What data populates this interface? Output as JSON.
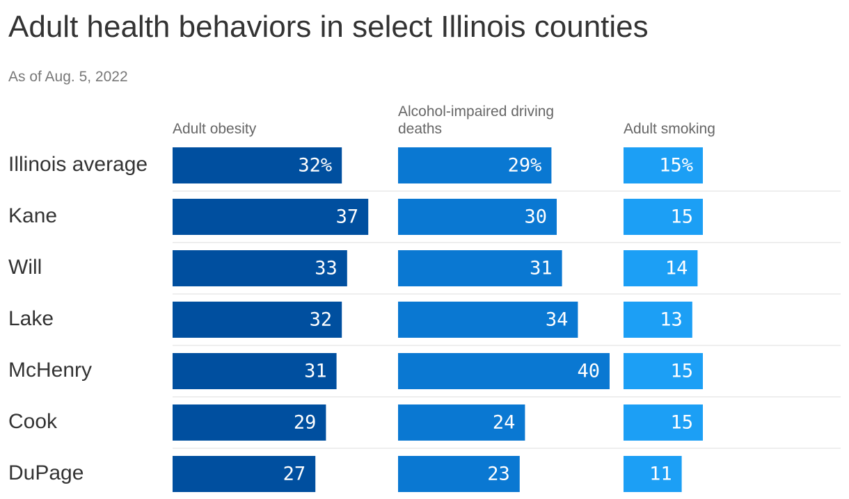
{
  "chart_data": {
    "type": "bar",
    "orientation": "horizontal",
    "title": "Adult health behaviors in select Illinois counties",
    "subtitle": "As of Aug. 5, 2022",
    "categories": [
      "Illinois average",
      "Kane",
      "Will",
      "Lake",
      "McHenry",
      "Cook",
      "DuPage"
    ],
    "series": [
      {
        "name": "Adult obesity",
        "color": "#004f9f",
        "values": [
          32,
          37,
          33,
          32,
          31,
          29,
          27
        ],
        "value_labels": [
          "32%",
          "37",
          "33",
          "32",
          "31",
          "29",
          "27"
        ]
      },
      {
        "name": "Alcohol-impaired driving deaths",
        "color": "#0a78d2",
        "values": [
          29,
          30,
          31,
          34,
          40,
          24,
          23
        ],
        "value_labels": [
          "29%",
          "30",
          "31",
          "34",
          "40",
          "24",
          "23"
        ]
      },
      {
        "name": "Adult smoking",
        "color": "#1c9ff5",
        "values": [
          15,
          15,
          14,
          13,
          15,
          15,
          11
        ],
        "value_labels": [
          "15%",
          "15",
          "14",
          "13",
          "15",
          "15",
          "11"
        ]
      }
    ]
  }
}
